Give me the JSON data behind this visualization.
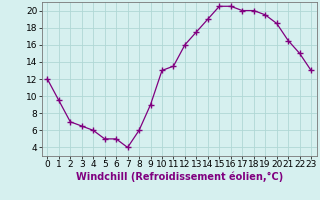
{
  "x": [
    0,
    1,
    2,
    3,
    4,
    5,
    6,
    7,
    8,
    9,
    10,
    11,
    12,
    13,
    14,
    15,
    16,
    17,
    18,
    19,
    20,
    21,
    22,
    23
  ],
  "y": [
    12,
    9.5,
    7,
    6.5,
    6,
    5,
    5,
    4,
    6,
    9,
    13,
    13.5,
    16,
    17.5,
    19,
    20.5,
    20.5,
    20,
    20,
    19.5,
    18.5,
    16.5,
    15,
    13
  ],
  "line_color": "#800080",
  "marker": "+",
  "marker_size": 4,
  "bg_color": "#d6f0ef",
  "grid_color": "#b0d8d5",
  "xlabel": "Windchill (Refroidissement éolien,°C)",
  "xlim": [
    -0.5,
    23.5
  ],
  "ylim": [
    3,
    21
  ],
  "yticks": [
    4,
    6,
    8,
    10,
    12,
    14,
    16,
    18,
    20
  ],
  "xticks": [
    0,
    1,
    2,
    3,
    4,
    5,
    6,
    7,
    8,
    9,
    10,
    11,
    12,
    13,
    14,
    15,
    16,
    17,
    18,
    19,
    20,
    21,
    22,
    23
  ],
  "tick_label_fontsize": 6.5,
  "xlabel_fontsize": 7
}
